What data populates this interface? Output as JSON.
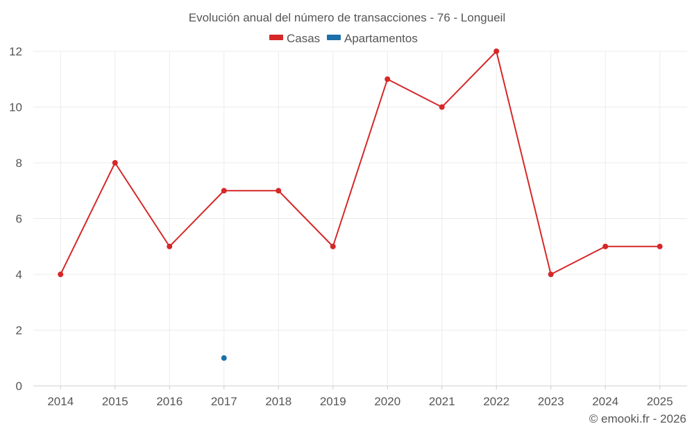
{
  "chart_data": {
    "type": "line",
    "title": "Evolución anual del número de transacciones - 76 - Longueil",
    "categories": [
      "2014",
      "2015",
      "2016",
      "2017",
      "2018",
      "2019",
      "2020",
      "2021",
      "2022",
      "2023",
      "2024",
      "2025"
    ],
    "series": [
      {
        "name": "Casas",
        "color": "#d62728",
        "values": [
          4,
          8,
          5,
          7,
          7,
          5,
          11,
          10,
          12,
          4,
          5,
          5
        ]
      },
      {
        "name": "Apartamentos",
        "color": "#1f6fa8",
        "values": [
          null,
          null,
          null,
          1,
          null,
          null,
          null,
          null,
          null,
          null,
          null,
          null
        ]
      }
    ],
    "ylim": [
      0,
      12
    ],
    "yticks": [
      "0",
      "2",
      "4",
      "6",
      "8",
      "10",
      "12"
    ],
    "grid": true,
    "legend_position": "top-center"
  },
  "credit": "© emooki.fr - 2026"
}
